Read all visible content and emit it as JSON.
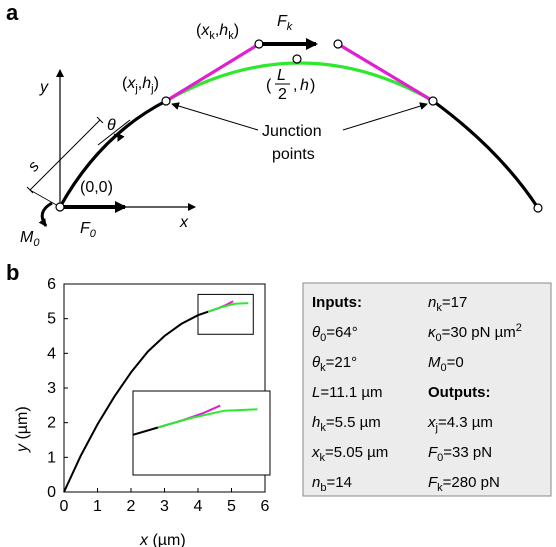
{
  "panel_a": {
    "letter": "a",
    "labels": {
      "y_axis": "y",
      "x_axis": "x",
      "s": "s",
      "theta": "θ",
      "origin": "(0,0)",
      "xj_h": "x",
      "xj_sub": "j",
      "hj_h": "h",
      "hj_sub": "j",
      "xk_h": "x",
      "xk_sub": "k",
      "hk_h": "h",
      "hk_sub": "k",
      "Fk": "F",
      "Fk_sub": "k",
      "F0": "F",
      "F0_sub": "0",
      "M0": "M",
      "M0_sub": "0",
      "L": "L",
      "two": "2",
      "h": "h",
      "junction_line1": "Junction",
      "junction_line2": "points"
    }
  },
  "panel_b": {
    "letter": "b",
    "xlabel_var": "x",
    "xlabel_unit": " (µm)",
    "ylabel_var": "y",
    "ylabel_unit": " (µm)"
  },
  "info_box": {
    "inputs_title": "Inputs:",
    "outputs_title": "Outputs:",
    "left": [
      {
        "sym": "θ",
        "sub": "0",
        "val": "=64°"
      },
      {
        "sym": "θ",
        "sub": "k",
        "val": "=21°"
      },
      {
        "sym": "L",
        "sub": "",
        "val": "=11.1 µm"
      },
      {
        "sym": "h",
        "sub": "k",
        "val": "=5.5 µm"
      },
      {
        "sym": "x",
        "sub": "k",
        "val": "=5.05 µm"
      },
      {
        "sym": "n",
        "sub": "b",
        "val": "=14"
      }
    ],
    "right_top": [
      {
        "sym": "n",
        "sub": "k",
        "val": "=17"
      },
      {
        "sym": "κ",
        "sub": "0",
        "val": "=30 pN µm",
        "sup": "2"
      },
      {
        "sym": "M",
        "sub": "0",
        "val": "=0"
      }
    ],
    "right_bottom": [
      {
        "sym": "x",
        "sub": "j",
        "val": "=4.3 µm"
      },
      {
        "sym": "F",
        "sub": "0",
        "val": "=33 pN"
      },
      {
        "sym": "F",
        "sub": "k",
        "val": "=280 pN"
      }
    ]
  },
  "colors": {
    "black_segment": "#000000",
    "magenta_segment": "#e020d0",
    "green_segment": "#2ee82e",
    "box_fill": "#ececec"
  },
  "chart_data": {
    "type": "line",
    "title": "",
    "xlabel": "x (µm)",
    "ylabel": "y (µm)",
    "xlim": [
      0,
      6
    ],
    "ylim": [
      0,
      6
    ],
    "xticks": [
      0,
      1,
      2,
      3,
      4,
      5,
      6
    ],
    "yticks": [
      0,
      1,
      2,
      3,
      4,
      5,
      6
    ],
    "grid": false,
    "series": [
      {
        "color": "#000000",
        "x": [
          0,
          0.5,
          1.0,
          1.5,
          2.0,
          2.5,
          3.0,
          3.5,
          4.0,
          4.3
        ],
        "y": [
          0,
          1.05,
          1.95,
          2.75,
          3.45,
          4.05,
          4.5,
          4.85,
          5.1,
          5.2
        ]
      },
      {
        "color": "#e020d0",
        "x": [
          4.3,
          4.6,
          4.85,
          5.05
        ],
        "y": [
          5.2,
          5.3,
          5.4,
          5.5
        ]
      },
      {
        "color": "#2ee82e",
        "x": [
          4.3,
          4.7,
          5.1,
          5.5
        ],
        "y": [
          5.2,
          5.33,
          5.43,
          5.45
        ]
      }
    ]
  }
}
